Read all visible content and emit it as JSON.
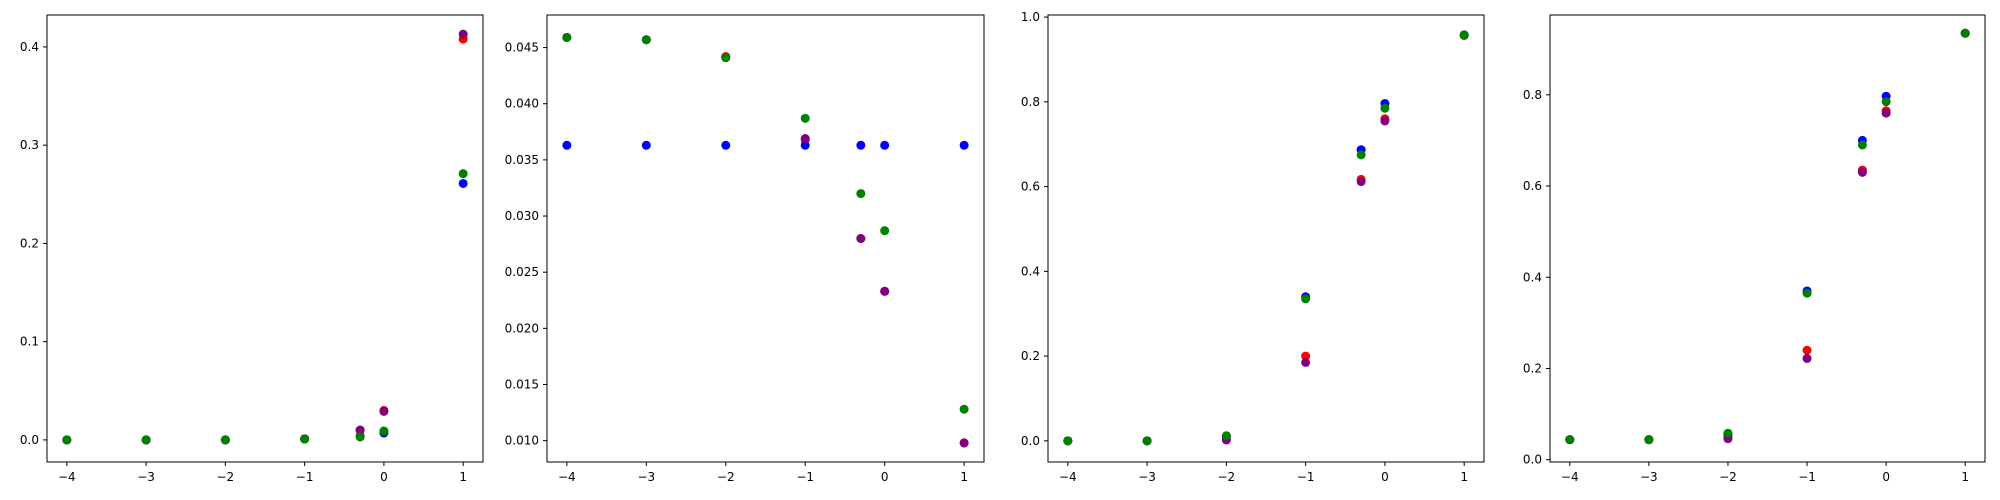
{
  "figure": {
    "background": "#ffffff",
    "series_colors": {
      "red": "#ff0000",
      "blue": "#0000ff",
      "purple": "#800080",
      "green": "#008000"
    }
  },
  "chart_data": [
    {
      "type": "scatter",
      "title": "",
      "xlabel": "",
      "ylabel": "",
      "xlim": [
        -4.25,
        1.25
      ],
      "ylim": [
        -0.0225,
        0.4325
      ],
      "xticks": [
        -4,
        -3,
        -2,
        -1,
        0,
        1
      ],
      "xtick_labels": [
        "−4",
        "−3",
        "−2",
        "−1",
        "0",
        "1"
      ],
      "yticks": [
        0.0,
        0.1,
        0.2,
        0.3,
        0.4
      ],
      "ytick_labels": [
        "0.0",
        "0.1",
        "0.2",
        "0.3",
        "0.4"
      ],
      "grid": false,
      "x": [
        -4,
        -3,
        -2,
        -1,
        -0.3,
        0,
        1
      ],
      "series": [
        {
          "color": "#ff0000",
          "values": [
            0.0,
            0.0,
            0.0,
            0.001,
            0.01,
            0.03,
            0.408
          ]
        },
        {
          "color": "#0000ff",
          "values": [
            0.0,
            0.0,
            0.0,
            0.001,
            0.004,
            0.007,
            0.261
          ]
        },
        {
          "color": "#800080",
          "values": [
            0.0,
            0.0,
            0.0,
            0.001,
            0.01,
            0.029,
            0.413
          ]
        },
        {
          "color": "#008000",
          "values": [
            0.0,
            0.0,
            0.0,
            0.001,
            0.003,
            0.009,
            0.271
          ]
        }
      ]
    },
    {
      "type": "scatter",
      "title": "",
      "xlabel": "",
      "ylabel": "",
      "xlim": [
        -4.25,
        1.25
      ],
      "ylim": [
        0.0081,
        0.0479
      ],
      "xticks": [
        -4,
        -3,
        -2,
        -1,
        0,
        1
      ],
      "xtick_labels": [
        "−4",
        "−3",
        "−2",
        "−1",
        "0",
        "1"
      ],
      "yticks": [
        0.01,
        0.015,
        0.02,
        0.025,
        0.03,
        0.035,
        0.04,
        0.045
      ],
      "ytick_labels": [
        "0.010",
        "0.015",
        "0.020",
        "0.025",
        "0.030",
        "0.035",
        "0.040",
        "0.045"
      ],
      "grid": false,
      "x": [
        -4,
        -3,
        -2,
        -1,
        -0.3,
        0,
        1
      ],
      "series": [
        {
          "color": "#ff0000",
          "values": [
            0.0459,
            0.0457,
            0.0442,
            0.0368,
            0.028,
            0.0233,
            0.0098
          ]
        },
        {
          "color": "#0000ff",
          "values": [
            0.0363,
            0.0363,
            0.0363,
            0.0363,
            0.0363,
            0.0363,
            0.0363
          ]
        },
        {
          "color": "#800080",
          "values": [
            0.0459,
            0.0457,
            0.0441,
            0.0369,
            0.028,
            0.0233,
            0.0098
          ]
        },
        {
          "color": "#008000",
          "values": [
            0.0459,
            0.0457,
            0.0441,
            0.0387,
            0.032,
            0.0287,
            0.0128
          ]
        }
      ]
    },
    {
      "type": "scatter",
      "title": "",
      "xlabel": "",
      "ylabel": "",
      "xlim": [
        -4.25,
        1.25
      ],
      "ylim": [
        -0.05,
        1.005
      ],
      "xticks": [
        -4,
        -3,
        -2,
        -1,
        0,
        1
      ],
      "xtick_labels": [
        "−4",
        "−3",
        "−2",
        "−1",
        "0",
        "1"
      ],
      "yticks": [
        0.0,
        0.2,
        0.4,
        0.6,
        0.8,
        1.0
      ],
      "ytick_labels": [
        "0.0",
        "0.2",
        "0.4",
        "0.6",
        "0.8",
        "1.0"
      ],
      "grid": false,
      "x": [
        -4,
        -3,
        -2,
        -1,
        -0.3,
        0,
        1
      ],
      "series": [
        {
          "color": "#ff0000",
          "values": [
            0.0,
            0.0,
            0.003,
            0.2,
            0.617,
            0.76,
            0.957
          ]
        },
        {
          "color": "#0000ff",
          "values": [
            0.0,
            0.0,
            0.01,
            0.34,
            0.687,
            0.796,
            0.958
          ]
        },
        {
          "color": "#800080",
          "values": [
            0.0,
            0.0,
            0.002,
            0.185,
            0.612,
            0.755,
            0.957
          ]
        },
        {
          "color": "#008000",
          "values": [
            0.0,
            0.0,
            0.012,
            0.335,
            0.675,
            0.785,
            0.958
          ]
        }
      ]
    },
    {
      "type": "scatter",
      "title": "",
      "xlabel": "",
      "ylabel": "",
      "xlim": [
        -4.25,
        1.25
      ],
      "ylim": [
        -0.005,
        0.975
      ],
      "xticks": [
        -4,
        -3,
        -2,
        -1,
        0,
        1
      ],
      "xtick_labels": [
        "−4",
        "−3",
        "−2",
        "−1",
        "0",
        "1"
      ],
      "yticks": [
        0.0,
        0.2,
        0.4,
        0.6,
        0.8
      ],
      "ytick_labels": [
        "0.0",
        "0.2",
        "0.4",
        "0.6",
        "0.8"
      ],
      "grid": false,
      "x": [
        -4,
        -3,
        -2,
        -1,
        -0.3,
        0,
        1
      ],
      "series": [
        {
          "color": "#ff0000",
          "values": [
            0.044,
            0.044,
            0.05,
            0.24,
            0.635,
            0.765,
            0.935
          ]
        },
        {
          "color": "#0000ff",
          "values": [
            0.044,
            0.044,
            0.055,
            0.37,
            0.7,
            0.797,
            0.935
          ]
        },
        {
          "color": "#800080",
          "values": [
            0.044,
            0.044,
            0.046,
            0.222,
            0.63,
            0.76,
            0.935
          ]
        },
        {
          "color": "#008000",
          "values": [
            0.044,
            0.044,
            0.058,
            0.365,
            0.69,
            0.785,
            0.935
          ]
        }
      ]
    }
  ]
}
